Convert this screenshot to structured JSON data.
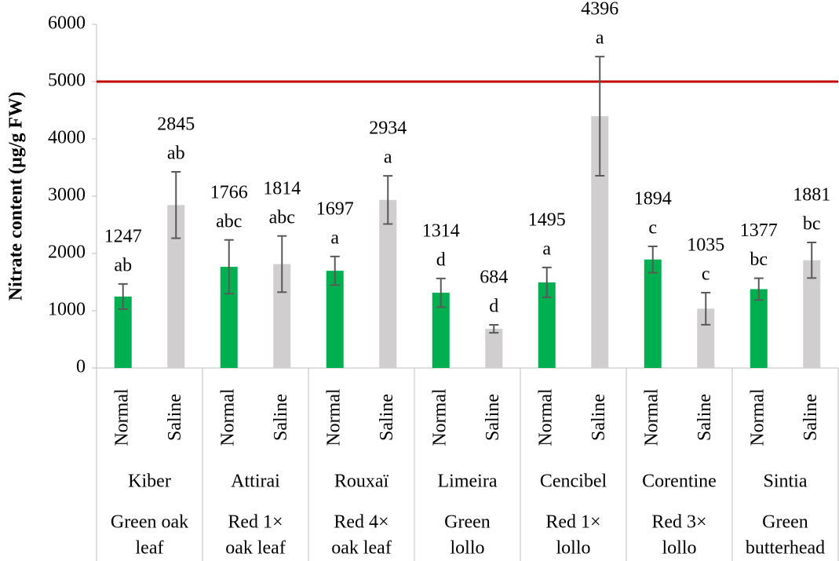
{
  "chart_data": {
    "type": "bar",
    "ylabel": "Nitrate content (µg/g FW)",
    "ylim": [
      0,
      6000
    ],
    "yticks": [
      0,
      1000,
      2000,
      3000,
      4000,
      5000,
      6000
    ],
    "categories": [
      "Kiber",
      "Attirai",
      "Rouxaï",
      "Limeira",
      "Cencibel",
      "Corentine",
      "Sintia"
    ],
    "groups": [
      [
        "Green oak",
        "leaf"
      ],
      [
        "Red 1×",
        "oak leaf"
      ],
      [
        "Red 4×",
        "oak leaf"
      ],
      [
        "Green",
        "lollo"
      ],
      [
        "Red 1×",
        "lollo"
      ],
      [
        "Red 3×",
        "lollo"
      ],
      [
        "Green",
        "butterhead"
      ]
    ],
    "series": [
      {
        "name": "Normal",
        "color": "#00b050",
        "values": [
          1247,
          1766,
          1697,
          1314,
          1495,
          1894,
          1377
        ],
        "errors": [
          220,
          470,
          250,
          250,
          260,
          230,
          190
        ],
        "letters": [
          "ab",
          "abc",
          "a",
          "d",
          "a",
          "c",
          "bc"
        ]
      },
      {
        "name": "Saline",
        "color": "#d0cece",
        "values": [
          2845,
          1814,
          2934,
          684,
          4396,
          1035,
          1881
        ],
        "errors": [
          580,
          490,
          420,
          70,
          1040,
          280,
          310
        ],
        "letters": [
          "ab",
          "abc",
          "a",
          "d",
          "a",
          "c",
          "bc"
        ]
      }
    ],
    "reference_line": {
      "value": 5000,
      "color": "#c00000"
    }
  }
}
